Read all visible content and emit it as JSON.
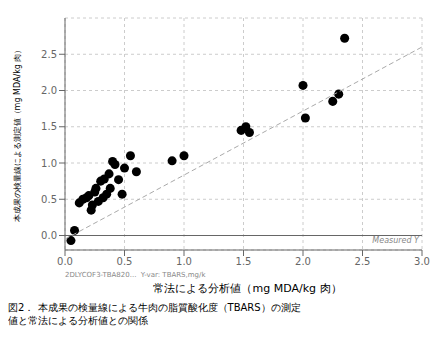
{
  "chart_data": {
    "type": "scatter",
    "xlabel": "常法による分析値（mg MDA/kg 肉）",
    "ylabel": "本成果の検量線による測定値（mg MDA/kg 肉）",
    "annotation": "Measured Y",
    "note": "2DLYCOF3-TBA820...  Y-var: TBARS,mg/k",
    "caption": [
      "図2． 本成果の検量線による牛肉の脂質酸化度（TBARS）の測定",
      "値と常法による分析値との関係"
    ],
    "series": [
      {
        "type": "scatter",
        "color": "#000000",
        "x": [
          0.05,
          0.08,
          0.12,
          0.15,
          0.18,
          0.2,
          0.22,
          0.23,
          0.25,
          0.26,
          0.28,
          0.3,
          0.32,
          0.33,
          0.35,
          0.37,
          0.38,
          0.4,
          0.42,
          0.45,
          0.48,
          0.5,
          0.55,
          0.6,
          0.9,
          1.0,
          1.48,
          1.52,
          1.55,
          2.0,
          2.02,
          2.25,
          2.3,
          2.35
        ],
        "values": [
          -0.07,
          0.07,
          0.45,
          0.5,
          0.52,
          0.55,
          0.35,
          0.42,
          0.6,
          0.65,
          0.47,
          0.75,
          0.52,
          0.78,
          0.57,
          0.85,
          0.65,
          1.02,
          0.98,
          0.77,
          0.57,
          0.93,
          1.1,
          0.88,
          1.03,
          1.1,
          1.45,
          1.5,
          1.42,
          2.07,
          1.62,
          1.85,
          1.95,
          2.72
        ]
      },
      {
        "type": "line",
        "color": "#aaaaaa",
        "line_style": "dashed",
        "x": [
          0.0,
          3.0
        ],
        "values": [
          -0.05,
          2.6
        ]
      }
    ],
    "reference_line": 0,
    "xlim": [
      0.0,
      3.0
    ],
    "ylim": [
      -0.2,
      3.0
    ],
    "xticks": [
      {
        "value": 0.0,
        "label": "0.0"
      },
      {
        "value": 0.5,
        "label": "0.5"
      },
      {
        "value": 1.0,
        "label": "1.0"
      },
      {
        "value": 1.5,
        "label": "1.5"
      },
      {
        "value": 2.0,
        "label": "2.0"
      },
      {
        "value": 2.5,
        "label": "2.5"
      },
      {
        "value": 3.0,
        "label": "3.0"
      }
    ],
    "yticks": [
      {
        "value": 0.0,
        "label": "0.0"
      },
      {
        "value": 0.5,
        "label": "0.5"
      },
      {
        "value": 1.0,
        "label": "1.0"
      },
      {
        "value": 1.5,
        "label": "1.5"
      },
      {
        "value": 2.0,
        "label": "2.0"
      },
      {
        "value": 2.5,
        "label": "2.5"
      }
    ],
    "grid": true
  }
}
